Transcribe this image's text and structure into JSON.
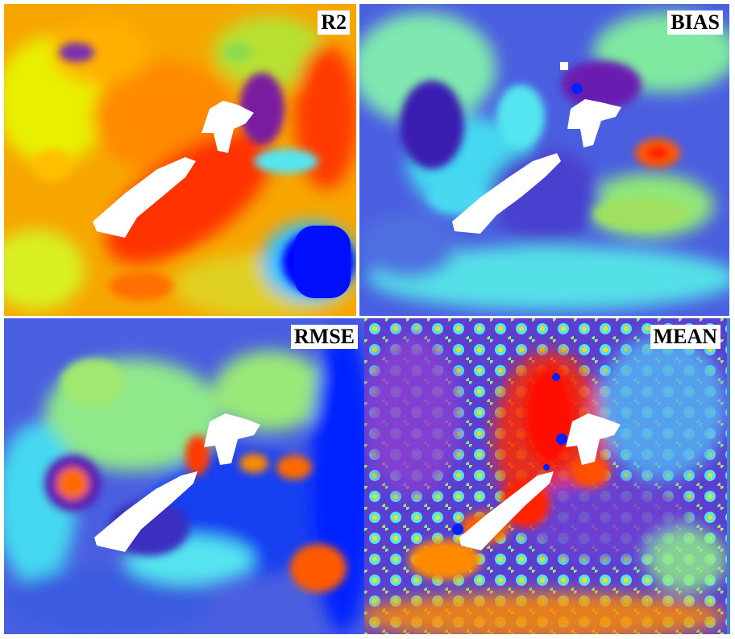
{
  "figure": {
    "panels": [
      {
        "id": "r2",
        "label": "R2",
        "base_color": "#ff7a00",
        "accent_colors": [
          "#ff1a00",
          "#e8f000",
          "#9adc3a",
          "#0000ff"
        ]
      },
      {
        "id": "bias",
        "label": "BIAS",
        "base_color": "#3d5adf",
        "accent_colors": [
          "#4de0e8",
          "#8fe88a",
          "#5a1fb0",
          "#ff2a00"
        ]
      },
      {
        "id": "rmse",
        "label": "RMSE",
        "base_color": "#3a5ce0",
        "accent_colors": [
          "#8fe88a",
          "#55e5f0",
          "#5a1fb0",
          "#ff5a00",
          "#0018ff"
        ]
      },
      {
        "id": "mean",
        "label": "MEAN",
        "base_color": "#5b3fd0",
        "accent_colors": [
          "#ff2a00",
          "#f0e000",
          "#55e5f0",
          "#8fe88a"
        ]
      }
    ]
  }
}
